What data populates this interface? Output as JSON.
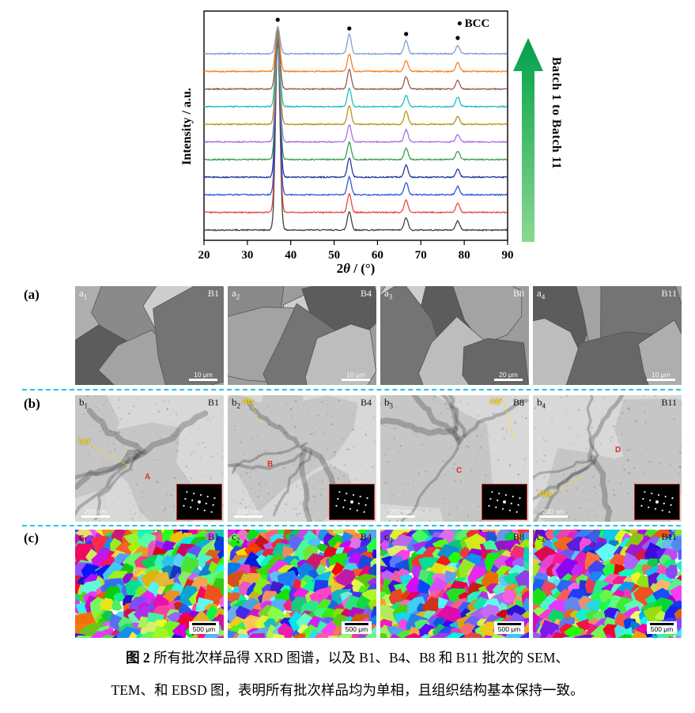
{
  "chart_data": {
    "type": "line",
    "title": "",
    "xlabel": "2θ / (°)",
    "xlabel_parts": {
      "pre": "2",
      "theta": "θ",
      "post": " / (°)"
    },
    "ylabel": "Intensity / a.u.",
    "xlim": [
      20,
      90
    ],
    "xticks": [
      20,
      30,
      40,
      50,
      60,
      70,
      80,
      90
    ],
    "legend": {
      "marker": "•",
      "label": "BCC"
    },
    "annotation_arrow_label": "Batch 1 to Batch 11",
    "peak_positions_2theta": [
      37.0,
      53.5,
      66.6,
      78.5
    ],
    "peak_relative_intensities": [
      1.0,
      0.42,
      0.3,
      0.18
    ],
    "series": [
      {
        "name": "Batch 1",
        "color": "#3d3d3d"
      },
      {
        "name": "Batch 2",
        "color": "#e8423a"
      },
      {
        "name": "Batch 3",
        "color": "#2853e0"
      },
      {
        "name": "Batch 4",
        "color": "#20329e"
      },
      {
        "name": "Batch 5",
        "color": "#2f9e48"
      },
      {
        "name": "Batch 6",
        "color": "#a96ce2"
      },
      {
        "name": "Batch 7",
        "color": "#b29410"
      },
      {
        "name": "Batch 8",
        "color": "#17bdbd"
      },
      {
        "name": "Batch 9",
        "color": "#8f594a"
      },
      {
        "name": "Batch 10",
        "color": "#f57f20"
      },
      {
        "name": "Batch 11",
        "color": "#7c9cd0"
      }
    ]
  },
  "figure": {
    "rows": [
      {
        "row_label": "(a)",
        "panels": [
          {
            "label": "a",
            "sub": "1",
            "batch": "B1",
            "scale_bar": "10 μm"
          },
          {
            "label": "a",
            "sub": "2",
            "batch": "B4",
            "scale_bar": "10 μm"
          },
          {
            "label": "a",
            "sub": "3",
            "batch": "B8",
            "scale_bar": "20 μm"
          },
          {
            "label": "a",
            "sub": "4",
            "batch": "B11",
            "scale_bar": "10 μm"
          }
        ]
      },
      {
        "row_label": "(b)",
        "panels": [
          {
            "label": "b",
            "sub": "1",
            "batch": "B1",
            "scale_bar": "200 nm",
            "gb": "GB",
            "marker": "A"
          },
          {
            "label": "b",
            "sub": "2",
            "batch": "B4",
            "scale_bar": "200 nm",
            "gb": "GB",
            "marker": "B"
          },
          {
            "label": "b",
            "sub": "3",
            "batch": "B8",
            "scale_bar": "200 nm",
            "gb": "GB",
            "marker": "C"
          },
          {
            "label": "b",
            "sub": "4",
            "batch": "B11",
            "scale_bar": "200 nm",
            "gb": "GB",
            "marker": "D"
          }
        ]
      },
      {
        "row_label": "(c)",
        "panels": [
          {
            "label": "c",
            "sub": "1",
            "batch": "B1",
            "scale_bar": "500 μm"
          },
          {
            "label": "c",
            "sub": "2",
            "batch": "B4",
            "scale_bar": "500 μm"
          },
          {
            "label": "c",
            "sub": "3",
            "batch": "B8",
            "scale_bar": "500 μm"
          },
          {
            "label": "c",
            "sub": "4",
            "batch": "B11",
            "scale_bar": "500 μm"
          }
        ]
      }
    ]
  },
  "caption": {
    "line1_bold": "图 2",
    "line1_rest": " 所有批次样品得 XRD 图谱，以及 B1、B4、B8 和 B11 批次的 SEM、",
    "line2": "TEM、和 EBSD 图，表明所有批次样品均为单相，且组织结构基本保持一致。"
  }
}
